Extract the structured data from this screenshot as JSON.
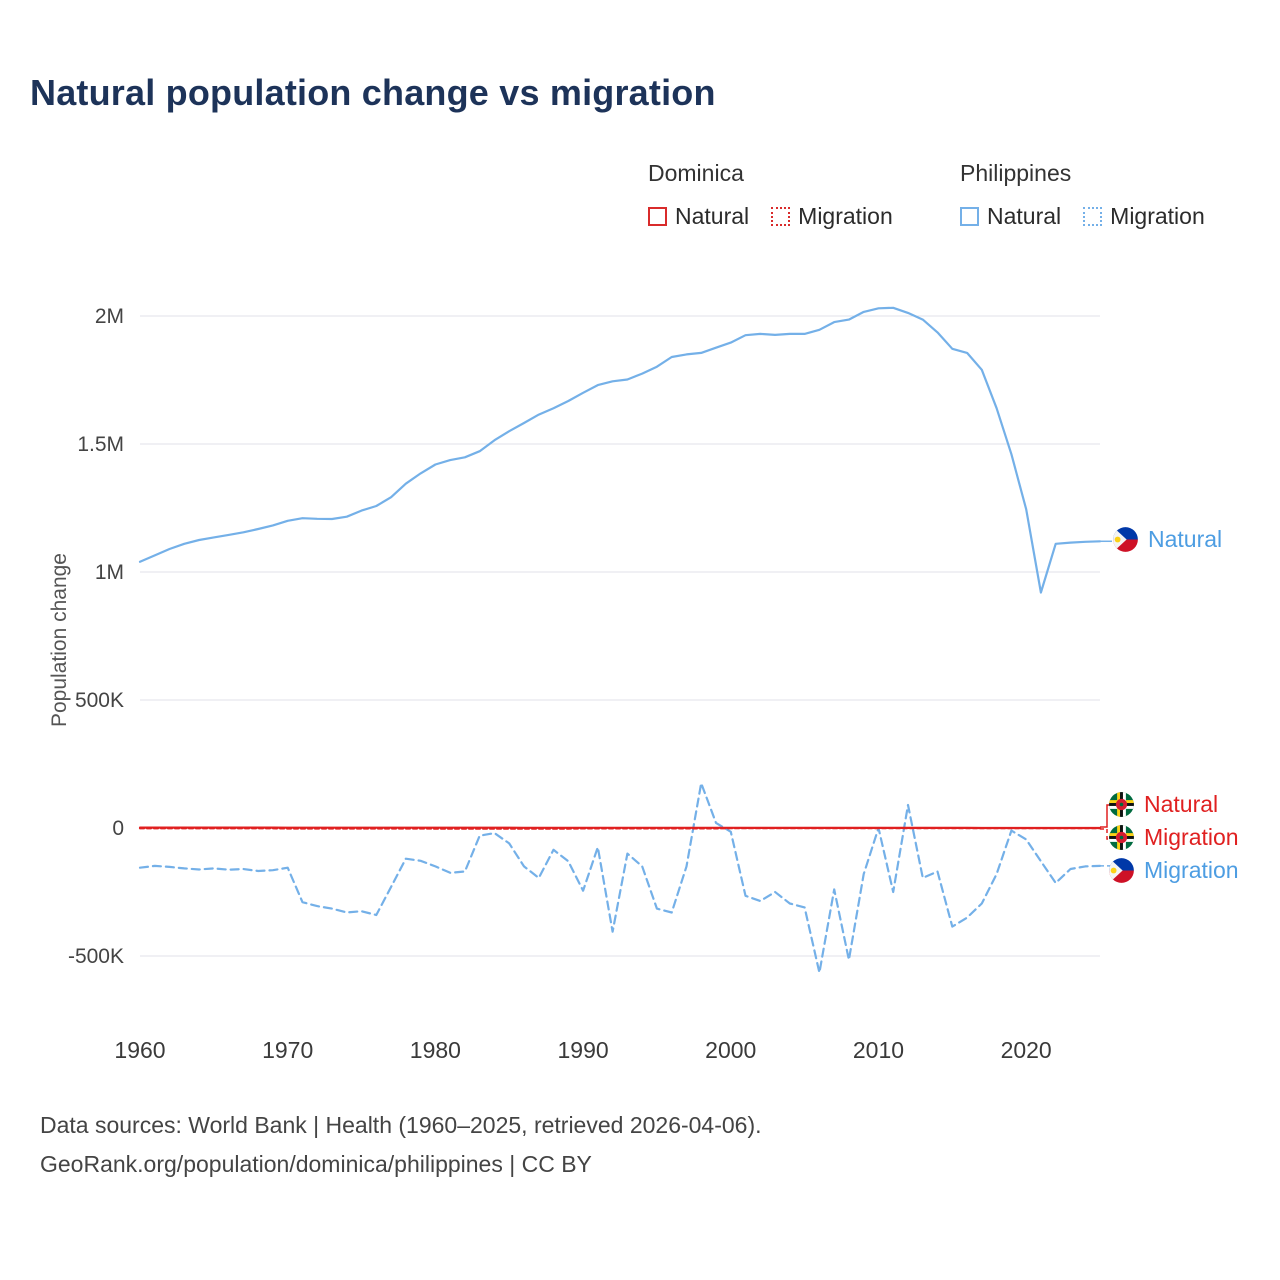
{
  "title": "Natural population change vs migration",
  "ylabel": "Population change",
  "legend": {
    "groups": [
      {
        "country": "Dominica",
        "color": "#d92b2b",
        "items": [
          {
            "label": "Natural",
            "style": "solid"
          },
          {
            "label": "Migration",
            "style": "dotted"
          }
        ]
      },
      {
        "country": "Philippines",
        "color": "#74b0e8",
        "items": [
          {
            "label": "Natural",
            "style": "solid"
          },
          {
            "label": "Migration",
            "style": "dotted"
          }
        ]
      }
    ]
  },
  "end_labels": [
    {
      "label": "Natural",
      "country": "Philippines",
      "color": "#4d9de2"
    },
    {
      "label": "Natural",
      "country": "Dominica",
      "color": "#e02020"
    },
    {
      "label": "Migration",
      "country": "Dominica",
      "color": "#e02020"
    },
    {
      "label": "Migration",
      "country": "Philippines",
      "color": "#4d9de2"
    }
  ],
  "footer": {
    "line1": "Data sources: World Bank | Health (1960–2025, retrieved 2026-04-06).",
    "line2": "GeoRank.org/population/dominica/philippines | CC BY"
  },
  "colors": {
    "philippines_line": "#74b0e8",
    "dominica_line": "#e02020",
    "grid": "#e2e2ea",
    "title": "#1d3359"
  },
  "chart_data": {
    "type": "line",
    "title": "Natural population change vs migration",
    "xlabel": "",
    "ylabel": "Population change",
    "legend_position": "top-right",
    "grid": "horizontal",
    "xlim": [
      1960,
      2025
    ],
    "ylim": [
      -700000,
      2150000
    ],
    "x_ticks": [
      1960,
      1970,
      1980,
      1990,
      2000,
      2010,
      2020
    ],
    "y_ticks": [
      {
        "value": 2000000,
        "label": "2M"
      },
      {
        "value": 1500000,
        "label": "1.5M"
      },
      {
        "value": 1000000,
        "label": "1M"
      },
      {
        "value": 500000,
        "label": "500K"
      },
      {
        "value": 0,
        "label": "0"
      },
      {
        "value": -500000,
        "label": "-500K"
      }
    ],
    "x": [
      1960,
      1961,
      1962,
      1963,
      1964,
      1965,
      1966,
      1967,
      1968,
      1969,
      1970,
      1971,
      1972,
      1973,
      1974,
      1975,
      1976,
      1977,
      1978,
      1979,
      1980,
      1981,
      1982,
      1983,
      1984,
      1985,
      1986,
      1987,
      1988,
      1989,
      1990,
      1991,
      1992,
      1993,
      1994,
      1995,
      1996,
      1997,
      1998,
      1999,
      2000,
      2001,
      2002,
      2003,
      2004,
      2005,
      2006,
      2007,
      2008,
      2009,
      2010,
      2011,
      2012,
      2013,
      2014,
      2015,
      2016,
      2017,
      2018,
      2019,
      2020,
      2021,
      2022,
      2023,
      2024,
      2025
    ],
    "series": [
      {
        "name": "Philippines Natural",
        "country": "Philippines",
        "metric": "Natural",
        "color": "#74b0e8",
        "dash": "",
        "values": [
          1040000,
          1065000,
          1090000,
          1110000,
          1125000,
          1135000,
          1145000,
          1155000,
          1168000,
          1182000,
          1200000,
          1210000,
          1208000,
          1207000,
          1216000,
          1240000,
          1258000,
          1292000,
          1345000,
          1385000,
          1420000,
          1437000,
          1448000,
          1472000,
          1515000,
          1550000,
          1582000,
          1615000,
          1640000,
          1668000,
          1700000,
          1730000,
          1745000,
          1752000,
          1775000,
          1802000,
          1840000,
          1850000,
          1856000,
          1876000,
          1896000,
          1925000,
          1930000,
          1926000,
          1930000,
          1930000,
          1946000,
          1976000,
          1986000,
          2016000,
          2030000,
          2032000,
          2012000,
          1986000,
          1936000,
          1872000,
          1856000,
          1790000,
          1640000,
          1460000,
          1245000,
          920000,
          1110000,
          1115000,
          1118000,
          1120000
        ]
      },
      {
        "name": "Philippines Migration",
        "country": "Philippines",
        "metric": "Migration",
        "color": "#74b0e8",
        "dash": "8,5",
        "values": [
          -155000,
          -148000,
          -152000,
          -158000,
          -162000,
          -158000,
          -163000,
          -160000,
          -168000,
          -165000,
          -155000,
          -290000,
          -305000,
          -315000,
          -330000,
          -325000,
          -340000,
          -230000,
          -120000,
          -128000,
          -150000,
          -175000,
          -170000,
          -30000,
          -20000,
          -60000,
          -150000,
          -195000,
          -85000,
          -130000,
          -245000,
          -75000,
          -405000,
          -100000,
          -150000,
          -315000,
          -330000,
          -150000,
          175000,
          20000,
          -15000,
          -265000,
          -285000,
          -250000,
          -295000,
          -310000,
          -565000,
          -240000,
          -515000,
          -180000,
          0,
          -250000,
          90000,
          -195000,
          -170000,
          -385000,
          -350000,
          -295000,
          -180000,
          -10000,
          -45000,
          -130000,
          -215000,
          -160000,
          -150000,
          -148000
        ]
      },
      {
        "name": "Dominica Natural",
        "country": "Dominica",
        "metric": "Natural",
        "color": "#e02020",
        "dash": "",
        "values": [
          1500,
          1490,
          1480,
          1470,
          1460,
          1450,
          1430,
          1410,
          1390,
          1370,
          1350,
          1330,
          1300,
          1280,
          1250,
          1230,
          1200,
          1180,
          1150,
          1130,
          1100,
          1080,
          1050,
          1030,
          1000,
          980,
          950,
          930,
          900,
          880,
          850,
          830,
          800,
          780,
          750,
          720,
          700,
          670,
          650,
          620,
          600,
          570,
          550,
          520,
          500,
          470,
          450,
          420,
          400,
          370,
          350,
          320,
          300,
          280,
          250,
          230,
          200,
          180,
          150,
          130,
          100,
          90,
          80,
          70,
          60,
          60
        ]
      },
      {
        "name": "Dominica Migration",
        "country": "Dominica",
        "metric": "Migration",
        "color": "#e02020",
        "dash": "4,3",
        "values": [
          -1300,
          -1300,
          -1300,
          -1300,
          -1300,
          -1300,
          -1300,
          -1300,
          -1300,
          -1300,
          -1800,
          -1800,
          -1800,
          -1800,
          -1800,
          -1800,
          -1800,
          -1800,
          -1800,
          -1800,
          -2200,
          -2200,
          -2200,
          -2200,
          -2200,
          -2200,
          -2200,
          -2200,
          -2200,
          -2200,
          -1500,
          -1500,
          -1500,
          -1500,
          -1500,
          -1500,
          -1500,
          -1500,
          -1500,
          -1500,
          -800,
          -800,
          -800,
          -800,
          -800,
          -800,
          -800,
          -800,
          -800,
          -800,
          -500,
          -500,
          -500,
          -500,
          -500,
          -500,
          -500,
          -500,
          -500,
          -500,
          -400,
          -400,
          -400,
          -400,
          -400,
          -400
        ]
      }
    ]
  }
}
